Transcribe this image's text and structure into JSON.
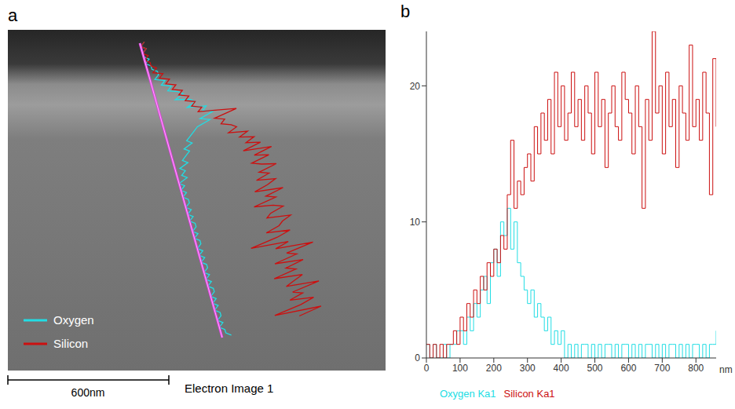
{
  "panels": [
    "a",
    "b"
  ],
  "image": {
    "legend": [
      "Oxygen",
      "Silicon"
    ],
    "scale_bar": "600nm",
    "caption": "Electron Image 1"
  },
  "chart_data": {
    "type": "line",
    "x_label": "nm",
    "x": [
      0,
      10,
      20,
      30,
      40,
      50,
      60,
      70,
      80,
      90,
      100,
      110,
      120,
      130,
      140,
      150,
      160,
      170,
      180,
      190,
      200,
      210,
      220,
      230,
      240,
      250,
      260,
      270,
      280,
      290,
      300,
      310,
      320,
      330,
      340,
      350,
      360,
      370,
      380,
      390,
      400,
      410,
      420,
      430,
      440,
      450,
      460,
      470,
      480,
      490,
      500,
      510,
      520,
      530,
      540,
      550,
      560,
      570,
      580,
      590,
      600,
      610,
      620,
      630,
      640,
      650,
      660,
      670,
      680,
      690,
      700,
      710,
      720,
      730,
      740,
      750,
      760,
      770,
      780,
      790,
      800,
      810,
      820,
      830,
      840,
      850,
      860
    ],
    "xlim": [
      0,
      860
    ],
    "xticks": [
      0,
      100,
      200,
      300,
      400,
      500,
      600,
      700,
      800
    ],
    "ylim": [
      0,
      24
    ],
    "yticks": [
      0,
      10,
      20
    ],
    "line_style": "step",
    "legend": "bottom",
    "series": [
      {
        "name": "Oxygen Ka1",
        "color": "#22dde4",
        "values": [
          1,
          0,
          1,
          0,
          0,
          1,
          0,
          1,
          1,
          2,
          2,
          1,
          3,
          2,
          4,
          3,
          5,
          6,
          4,
          7,
          8,
          6,
          10,
          9,
          11,
          8,
          10,
          7,
          6,
          5,
          4,
          5,
          3,
          4,
          3,
          2,
          3,
          1,
          2,
          1,
          2,
          0,
          1,
          0,
          1,
          0,
          1,
          1,
          0,
          1,
          0,
          1,
          0,
          1,
          1,
          0,
          1,
          0,
          1,
          1,
          0,
          1,
          0,
          1,
          0,
          1,
          1,
          0,
          1,
          0,
          1,
          0,
          1,
          1,
          0,
          1,
          0,
          1,
          0,
          1,
          1,
          0,
          1,
          0,
          1,
          1,
          2
        ]
      },
      {
        "name": "Silicon Ka1",
        "color": "#cc1010",
        "values": [
          1,
          0,
          1,
          0,
          1,
          0,
          1,
          1,
          2,
          1,
          3,
          2,
          4,
          3,
          5,
          4,
          6,
          5,
          7,
          6,
          8,
          7,
          9,
          8,
          12,
          16,
          11,
          13,
          12,
          14,
          15,
          13,
          17,
          15,
          18,
          16,
          19,
          15,
          21,
          17,
          20,
          16,
          18,
          21,
          17,
          19,
          16,
          20,
          18,
          15,
          21,
          17,
          19,
          14,
          18,
          20,
          17,
          16,
          21,
          19,
          18,
          15,
          20,
          17,
          11,
          19,
          16,
          24,
          18,
          20,
          15,
          21,
          17,
          19,
          14,
          20,
          18,
          16,
          23,
          17,
          19,
          16,
          21,
          18,
          12,
          22,
          17
        ]
      }
    ]
  }
}
